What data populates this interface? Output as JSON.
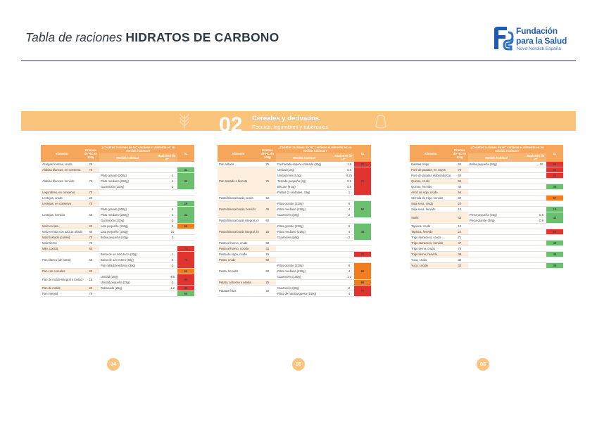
{
  "header": {
    "title_italic": "Tabla de raciones",
    "title_bold": "HIDRATOS DE CARBONO",
    "logo_line1": "Fundación",
    "logo_line2": "para la Salud",
    "logo_line3": "Novo Nordisk España",
    "logo_mark": "fundacion-logo-mark"
  },
  "section": {
    "number": "02",
    "title": "Cereales y derivados.",
    "subtitle": "Féculas, legumbres y tubérculos"
  },
  "colors": {
    "accent": "#fbc47d",
    "header": "#f6a65a",
    "green": "#6cbf6e",
    "red": "#e2342f",
    "orange": "#f07d1e",
    "rule": "#2f3f6e"
  },
  "table_headers": {
    "food": "Alimento",
    "grams": "Gramos de HC en 100g",
    "question": "¿Cuántas raciones de HC contiene el alimento en su medida habitual?",
    "measure": "Medida habitual",
    "rations": "Raciones de HC",
    "ig": "IG"
  },
  "tables": [
    {
      "page": "04",
      "rows": [
        {
          "food": "Acelgas frescas, crudo",
          "g": "25",
          "m": [],
          "c": "white",
          "ig": ""
        },
        {
          "food": "Alubias blancas, en conserva",
          "g": "70",
          "m": [],
          "c": "green",
          "ig": "31"
        },
        {
          "food": "Alubias blancas, hervido",
          "g": "72",
          "m": [
            [
              "Plato grande (300g)",
              "4"
            ],
            [
              "Plato mediano (250g)",
              "4"
            ],
            [
              "Guarnición (100g)",
              "2"
            ]
          ],
          "c": "green",
          "ig": "33"
        },
        {
          "food": "Legumbres, en conserva",
          "g": "70",
          "m": [],
          "c": "white",
          "ig": ""
        },
        {
          "food": "Lentejas, crudo",
          "g": "20",
          "m": [],
          "c": "white",
          "ig": ""
        },
        {
          "food": "Lentejas, en conserva",
          "g": "70",
          "m": [],
          "c": "green",
          "ig": "29"
        },
        {
          "food": "Lentejas, hervido",
          "g": "50",
          "m": [
            [
              "Plato grande (300g)",
              "6"
            ],
            [
              "Plato mediano (250g)",
              "4"
            ],
            [
              "Guarnición (100g)",
              "2"
            ]
          ],
          "c": "green",
          "ig": "32"
        },
        {
          "food": "Maíz en lata",
          "g": "20",
          "m": [
            [
              "Lata pequeña (150g)",
              "3"
            ]
          ],
          "c": "orange",
          "ig": "60"
        },
        {
          "food": "Maíz en lata con azúcar añadido",
          "g": "90",
          "m": [
            [
              "Lata pequeña (150g)",
              "10"
            ]
          ],
          "c": "white",
          "ig": ""
        },
        {
          "food": "Maíz tostado (cortes)",
          "g": "70",
          "m": [
            [
              "Bolsa pequeña (40g)",
              "3"
            ]
          ],
          "c": "white",
          "ig": ""
        },
        {
          "food": "Maíz tierno",
          "g": "75",
          "m": [],
          "c": "white",
          "ig": ""
        },
        {
          "food": "Mijo, cocido",
          "g": "63",
          "m": [],
          "c": "red",
          "ig": "71"
        },
        {
          "food": "Pan blanco (de barra)",
          "g": "50",
          "m": [
            [
              "Barra de un solo 5 cm (20g)",
              "1"
            ],
            [
              "Barra de 1/4 entera (80g)",
              "8"
            ],
            [
              "Pan rallado/mediano (30g)",
              "2"
            ]
          ],
          "c": "red",
          "ig": "75"
        },
        {
          "food": "Pan con cereales",
          "g": "20",
          "m": [],
          "c": "orange",
          "ig": "60"
        },
        {
          "food": "Pan de molde integral o tostado",
          "g": "18",
          "m": [
            [
              "Unidad (30g)",
              "4/8"
            ],
            [
              "Unidad pequeña (25g)",
              "2"
            ]
          ],
          "c": "red",
          "ig": "85"
        },
        {
          "food": "Pan de molde",
          "g": "20",
          "m": [
            [
              "Rebanada (25g)",
              "1,2"
            ]
          ],
          "c": "red",
          "ig": "85"
        },
        {
          "food": "Pan integral",
          "g": "75",
          "m": [],
          "c": "green",
          "ig": "50"
        }
      ]
    },
    {
      "page": "05",
      "rows": [
        {
          "food": "Pan rallado",
          "g": "75",
          "m": [
            [
              "Cucharada sopera colmada (20g)",
              "1,5"
            ]
          ],
          "c": "red",
          "ig": "70"
        },
        {
          "food": "Pan tostado o biscote",
          "g": "75",
          "m": [
            [
              "Unidad (10g)",
              "0,6"
            ],
            [
              "Unidad mini (5,5g)",
              "0,25"
            ],
            [
              "Tostada pequeña (2g)",
              "0,5"
            ],
            [
              "Biscote (8,5g)",
              "0,8"
            ],
            [
              "Palitos (2 unidades, 15g)",
              "1"
            ]
          ],
          "c": "red",
          "ig": "70"
        },
        {
          "food": "Pasta blanca/cruda, crudo",
          "g": "52",
          "m": [],
          "c": "white",
          "ig": ""
        },
        {
          "food": "Pasta blanca/cruda, hervido",
          "g": "45",
          "m": [
            [
              "Plato grande (220g)",
              "6"
            ],
            [
              "Plato mediano (150g)",
              "4"
            ],
            [
              "Guarnición (60g)",
              "2"
            ]
          ],
          "c": "green",
          "ig": "50"
        },
        {
          "food": "Pasta blanca/cruda integral, crudo",
          "g": "60",
          "m": [],
          "c": "white",
          "ig": ""
        },
        {
          "food": "Pasta blanca/cruda integral, hervido",
          "g": "25",
          "m": [
            [
              "Plato grande (220g)",
              "6"
            ],
            [
              "Plato mediano (150g)",
              "4"
            ],
            [
              "Guarnición (60g)",
              "2"
            ]
          ],
          "c": "green",
          "ig": "40"
        },
        {
          "food": "Pasta al huevo, crudo",
          "g": "59",
          "m": [],
          "c": "white",
          "ig": ""
        },
        {
          "food": "Pasta al huevo, cocida",
          "g": "31",
          "m": [],
          "c": "white",
          "ig": ""
        },
        {
          "food": "Pasta de sopa, crudo",
          "g": "15",
          "m": [],
          "c": "red",
          "ig": "70"
        },
        {
          "food": "Pasta, crudo",
          "g": "60",
          "m": [],
          "c": "white",
          "ig": ""
        },
        {
          "food": "Pasta, hervido",
          "g": "60",
          "m": [
            [
              "Plato grande (220g)",
              "6"
            ],
            [
              "Plato mediano (150g)",
              "4"
            ],
            [
              "Guarnición (100g)",
              "1,2"
            ]
          ],
          "c": "orange",
          "ig": "60"
        },
        {
          "food": "Patata, al horno o asada",
          "g": "25",
          "m": [],
          "c": "orange",
          "ig": "60"
        },
        {
          "food": "Patatas fritas",
          "g": "20",
          "m": [
            [
              "Guarnición (80g)",
              "2"
            ],
            [
              "Plato de hamburguesa (160g)",
              "4"
            ]
          ],
          "c": "red",
          "ig": "70"
        }
      ]
    },
    {
      "page": "06",
      "rows": [
        {
          "food": "Patatas chips",
          "g": "50",
          "m": [
            [
              "Bolsa pequeña (40g)",
              "10"
            ]
          ],
          "c": "red",
          "ig": "90"
        },
        {
          "food": "Puré de patatas, en copos",
          "g": "75",
          "m": [],
          "c": "red",
          "ig": "90"
        },
        {
          "food": "Puré de patatas elaborado/cocinado",
          "g": "50",
          "m": [],
          "c": "red",
          "ig": "90"
        },
        {
          "food": "Quinoa, crudo",
          "g": "59",
          "m": [],
          "c": "white",
          "ig": ""
        },
        {
          "food": "Quinoa, hervido",
          "g": "45",
          "m": [],
          "c": "green",
          "ig": "35"
        },
        {
          "food": "Arroz de soja, crudo",
          "g": "54",
          "m": [],
          "c": "white",
          "ig": ""
        },
        {
          "food": "Sémola de trigo, hervido",
          "g": "60",
          "m": [],
          "c": "orange",
          "ig": "67"
        },
        {
          "food": "Soja seca, crudo",
          "g": "20",
          "m": [],
          "c": "white",
          "ig": ""
        },
        {
          "food": "Soja seca, hervido",
          "g": "10",
          "m": [],
          "c": "green",
          "ig": "15"
        },
        {
          "food": "Sushi",
          "g": "45",
          "m": [
            [
              "Pieza pequeña (25g)",
              "0,5"
            ],
            [
              "Pieza grande (40g)",
              "0,9"
            ]
          ],
          "c": "green",
          "ig": "42"
        },
        {
          "food": "Tapioca, crudo",
          "g": "12",
          "m": [],
          "c": "white",
          "ig": ""
        },
        {
          "food": "Tapioca, hervido",
          "g": "22",
          "m": [],
          "c": "red",
          "ig": "64"
        },
        {
          "food": "Trigo sarraceno, crudo",
          "g": "71",
          "m": [],
          "c": "white",
          "ig": ""
        },
        {
          "food": "Trigo sarraceno, hervido",
          "g": "47",
          "m": [],
          "c": "green",
          "ig": "40"
        },
        {
          "food": "Trigo tierno, crudo",
          "g": "70",
          "m": [],
          "c": "white",
          "ig": ""
        },
        {
          "food": "Trigo tierno, hervido",
          "g": "38",
          "m": [],
          "c": "green",
          "ig": "34"
        },
        {
          "food": "Yuca, crudo",
          "g": "35",
          "m": [],
          "c": "white",
          "ig": ""
        },
        {
          "food": "Yuca, cocido",
          "g": "32",
          "m": [],
          "c": "green",
          "ig": "35"
        }
      ]
    }
  ]
}
